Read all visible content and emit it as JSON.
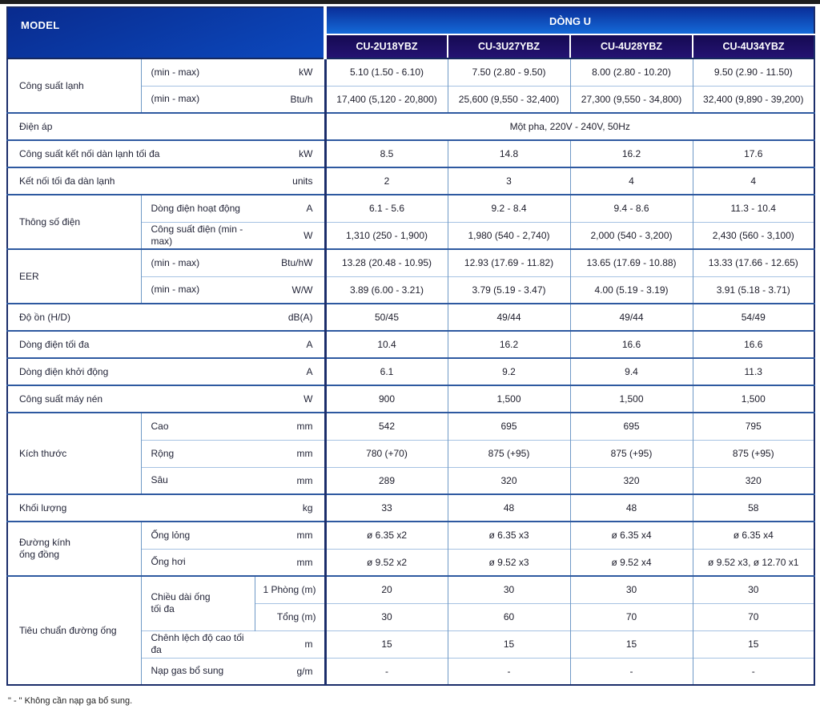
{
  "table": {
    "corner_label": "MODEL",
    "series_label": "DÒNG U",
    "models": [
      "CU-2U18YBZ",
      "CU-3U27YBZ",
      "CU-4U28YBZ",
      "CU-4U34YBZ"
    ],
    "colors": {
      "header_gradient_top": "#0a2f9a",
      "header_gradient_bottom": "#146ad8",
      "model_band": "#1c0f63",
      "grid_minor": "#a6c2e2",
      "grid_vertical": "#6f99c6",
      "grid_major": "#2e59a0",
      "frame_dark": "#1b2d6a",
      "text_dark": "#1c1c2a"
    },
    "rows": [
      {
        "major": true,
        "cells": [
          {
            "t": "Công suất lạnh",
            "c": "label",
            "rs": 2
          },
          {
            "t": "(min - max)",
            "c": "sub"
          },
          {
            "t": "kW",
            "c": "unit"
          },
          {
            "t": "5.10 (1.50 - 6.10)"
          },
          {
            "t": "7.50 (2.80 - 9.50)"
          },
          {
            "t": "8.00 (2.80 - 10.20)"
          },
          {
            "t": "9.50 (2.90 - 11.50)"
          }
        ]
      },
      {
        "major": false,
        "cells": [
          {
            "t": "(min - max)",
            "c": "sub"
          },
          {
            "t": "Btu/h",
            "c": "unit"
          },
          {
            "t": "17,400 (5,120 - 20,800)"
          },
          {
            "t": "25,600 (9,550 - 32,400)"
          },
          {
            "t": "27,300 (9,550 - 34,800)"
          },
          {
            "t": "32,400 (9,890 - 39,200)"
          }
        ]
      },
      {
        "major": true,
        "cells": [
          {
            "t": "Điện áp",
            "c": "label",
            "cs": 3
          },
          {
            "t": "Một pha, 220V - 240V, 50Hz",
            "cs": 4
          }
        ]
      },
      {
        "major": true,
        "cells": [
          {
            "t": "Công suất kết nối dàn lạnh tối đa",
            "c": "label",
            "cs": 2
          },
          {
            "t": "kW",
            "c": "unit"
          },
          {
            "t": "8.5"
          },
          {
            "t": "14.8"
          },
          {
            "t": "16.2"
          },
          {
            "t": "17.6"
          }
        ]
      },
      {
        "major": true,
        "cells": [
          {
            "t": "Kết nối tối đa dàn lạnh",
            "c": "label",
            "cs": 2
          },
          {
            "t": "units",
            "c": "unit"
          },
          {
            "t": "2"
          },
          {
            "t": "3"
          },
          {
            "t": "4"
          },
          {
            "t": "4"
          }
        ]
      },
      {
        "major": true,
        "cells": [
          {
            "t": "Thông số điện",
            "c": "label",
            "rs": 2
          },
          {
            "t": "Dòng điện hoạt động",
            "c": "sub"
          },
          {
            "t": "A",
            "c": "unit"
          },
          {
            "t": "6.1 - 5.6"
          },
          {
            "t": "9.2 - 8.4"
          },
          {
            "t": "9.4 - 8.6"
          },
          {
            "t": "11.3 - 10.4"
          }
        ]
      },
      {
        "major": false,
        "cells": [
          {
            "t": "Công suất điện (min - max)",
            "c": "sub"
          },
          {
            "t": "W",
            "c": "unit"
          },
          {
            "t": "1,310 (250 - 1,900)"
          },
          {
            "t": "1,980 (540 - 2,740)"
          },
          {
            "t": "2,000 (540 - 3,200)"
          },
          {
            "t": "2,430 (560 - 3,100)"
          }
        ]
      },
      {
        "major": true,
        "cells": [
          {
            "t": "EER",
            "c": "label",
            "rs": 2
          },
          {
            "t": "(min - max)",
            "c": "sub"
          },
          {
            "t": "Btu/hW",
            "c": "unit"
          },
          {
            "t": "13.28 (20.48 - 10.95)"
          },
          {
            "t": "12.93 (17.69 - 11.82)"
          },
          {
            "t": "13.65 (17.69 - 10.88)"
          },
          {
            "t": "13.33 (17.66 - 12.65)"
          }
        ]
      },
      {
        "major": false,
        "cells": [
          {
            "t": "(min - max)",
            "c": "sub"
          },
          {
            "t": "W/W",
            "c": "unit"
          },
          {
            "t": "3.89 (6.00 - 3.21)"
          },
          {
            "t": "3.79 (5.19 - 3.47)"
          },
          {
            "t": "4.00 (5.19 - 3.19)"
          },
          {
            "t": "3.91 (5.18 - 3.71)"
          }
        ]
      },
      {
        "major": true,
        "cells": [
          {
            "t": "Độ ồn (H/D)",
            "c": "label",
            "cs": 2
          },
          {
            "t": "dB(A)",
            "c": "unit"
          },
          {
            "t": "50/45"
          },
          {
            "t": "49/44"
          },
          {
            "t": "49/44"
          },
          {
            "t": "54/49"
          }
        ]
      },
      {
        "major": true,
        "cells": [
          {
            "t": "Dòng điện tối đa",
            "c": "label",
            "cs": 2
          },
          {
            "t": "A",
            "c": "unit"
          },
          {
            "t": "10.4"
          },
          {
            "t": "16.2"
          },
          {
            "t": "16.6"
          },
          {
            "t": "16.6"
          }
        ]
      },
      {
        "major": true,
        "cells": [
          {
            "t": "Dòng điện khởi động",
            "c": "label",
            "cs": 2
          },
          {
            "t": "A",
            "c": "unit"
          },
          {
            "t": "6.1"
          },
          {
            "t": "9.2"
          },
          {
            "t": "9.4"
          },
          {
            "t": "11.3"
          }
        ]
      },
      {
        "major": true,
        "cells": [
          {
            "t": "Công suất máy nén",
            "c": "label",
            "cs": 2
          },
          {
            "t": "W",
            "c": "unit"
          },
          {
            "t": "900"
          },
          {
            "t": "1,500"
          },
          {
            "t": "1,500"
          },
          {
            "t": "1,500"
          }
        ]
      },
      {
        "major": true,
        "cells": [
          {
            "t": "Kích thước",
            "c": "label",
            "rs": 3
          },
          {
            "t": "Cao",
            "c": "sub"
          },
          {
            "t": "mm",
            "c": "unit"
          },
          {
            "t": "542"
          },
          {
            "t": "695"
          },
          {
            "t": "695"
          },
          {
            "t": "795"
          }
        ]
      },
      {
        "major": false,
        "cells": [
          {
            "t": "Rộng",
            "c": "sub"
          },
          {
            "t": "mm",
            "c": "unit"
          },
          {
            "t": "780 (+70)"
          },
          {
            "t": "875 (+95)"
          },
          {
            "t": "875 (+95)"
          },
          {
            "t": "875 (+95)"
          }
        ]
      },
      {
        "major": false,
        "cells": [
          {
            "t": "Sâu",
            "c": "sub"
          },
          {
            "t": "mm",
            "c": "unit"
          },
          {
            "t": "289"
          },
          {
            "t": "320"
          },
          {
            "t": "320"
          },
          {
            "t": "320"
          }
        ]
      },
      {
        "major": true,
        "cells": [
          {
            "t": "Khối lượng",
            "c": "label",
            "cs": 2
          },
          {
            "t": "kg",
            "c": "unit"
          },
          {
            "t": "33"
          },
          {
            "t": "48"
          },
          {
            "t": "48"
          },
          {
            "t": "58"
          }
        ]
      },
      {
        "major": true,
        "cells": [
          {
            "t": "Đường kính\nống đồng",
            "c": "label",
            "rs": 2
          },
          {
            "t": "Ống lỏng",
            "c": "sub"
          },
          {
            "t": "mm",
            "c": "unit"
          },
          {
            "t": "ø 6.35 x2"
          },
          {
            "t": "ø 6.35 x3"
          },
          {
            "t": "ø 6.35 x4"
          },
          {
            "t": "ø 6.35 x4"
          }
        ]
      },
      {
        "major": false,
        "cells": [
          {
            "t": "Ống hơi",
            "c": "sub"
          },
          {
            "t": "mm",
            "c": "unit"
          },
          {
            "t": "ø 9.52 x2"
          },
          {
            "t": "ø 9.52 x3"
          },
          {
            "t": "ø 9.52 x4"
          },
          {
            "t": "ø 9.52 x3, ø 12.70 x1"
          }
        ]
      },
      {
        "major": true,
        "cells": [
          {
            "t": "Tiêu chuẩn đường ống",
            "c": "label",
            "rs": 4
          },
          {
            "t": "Chiều dài ống\ntối đa",
            "c": "sub",
            "rs": 2
          },
          {
            "t": "1 Phòng (m)",
            "c": "unit2"
          },
          {
            "t": "20"
          },
          {
            "t": "30"
          },
          {
            "t": "30"
          },
          {
            "t": "30"
          }
        ]
      },
      {
        "major": false,
        "cells": [
          {
            "t": "Tổng (m)",
            "c": "unit2"
          },
          {
            "t": "30"
          },
          {
            "t": "60"
          },
          {
            "t": "70"
          },
          {
            "t": "70"
          }
        ]
      },
      {
        "major": false,
        "cells": [
          {
            "t": "Chênh lệch độ cao tối đa",
            "c": "sub"
          },
          {
            "t": "m",
            "c": "unit"
          },
          {
            "t": "15"
          },
          {
            "t": "15"
          },
          {
            "t": "15"
          },
          {
            "t": "15"
          }
        ]
      },
      {
        "major": false,
        "cells": [
          {
            "t": "Nạp gas bổ sung",
            "c": "sub"
          },
          {
            "t": "g/m",
            "c": "unit"
          },
          {
            "t": "-"
          },
          {
            "t": "-"
          },
          {
            "t": "-"
          },
          {
            "t": "-"
          }
        ]
      }
    ]
  },
  "footnote": "\" - \" Không cần nạp ga bổ sung."
}
